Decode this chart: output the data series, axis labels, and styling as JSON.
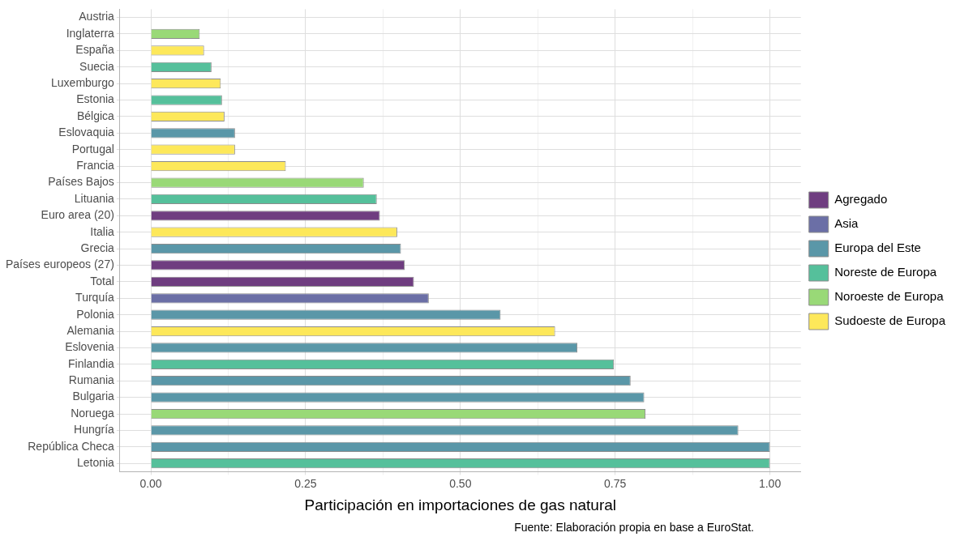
{
  "chart_data": {
    "type": "bar",
    "orientation": "horizontal",
    "stacked": true,
    "categories": [
      "Austria",
      "Inglaterra",
      "España",
      "Suecia",
      "Luxemburgo",
      "Estonia",
      "Bélgica",
      "Eslovaquia",
      "Portugal",
      "Francia",
      "Países Bajos",
      "Lituania",
      "Euro area (20)",
      "Italia",
      "Grecia",
      "Países europeos (27)",
      "Total",
      "Turquía",
      "Polonia",
      "Alemania",
      "Eslovenia",
      "Finlandia",
      "Rumania",
      "Bulgaria",
      "Noruega",
      "Hungría",
      "República Checa",
      "Letonia"
    ],
    "series": [
      {
        "name": "Agregado",
        "color": "#6f3d80",
        "values": [
          null,
          null,
          null,
          null,
          null,
          null,
          null,
          null,
          null,
          null,
          null,
          null,
          0.37,
          null,
          null,
          0.41,
          0.425,
          null,
          null,
          null,
          null,
          null,
          null,
          null,
          null,
          null,
          null,
          null
        ]
      },
      {
        "name": "Asia",
        "color": "#6b6fa6",
        "values": [
          null,
          null,
          null,
          null,
          null,
          null,
          null,
          null,
          null,
          null,
          null,
          null,
          null,
          null,
          null,
          null,
          null,
          0.449,
          null,
          null,
          null,
          null,
          null,
          null,
          null,
          null,
          null,
          null
        ]
      },
      {
        "name": "Europa del Este",
        "color": "#5a97a8",
        "values": [
          null,
          null,
          null,
          null,
          null,
          null,
          null,
          0.136,
          null,
          null,
          null,
          null,
          null,
          null,
          0.404,
          null,
          null,
          null,
          0.565,
          null,
          0.689,
          null,
          0.775,
          0.797,
          null,
          0.949,
          1.0,
          null
        ]
      },
      {
        "name": "Noreste de Europa",
        "color": "#55c09b",
        "values": [
          null,
          null,
          null,
          0.098,
          null,
          0.115,
          null,
          null,
          null,
          null,
          null,
          0.365,
          null,
          null,
          null,
          null,
          null,
          null,
          null,
          null,
          null,
          0.748,
          null,
          null,
          null,
          null,
          null,
          1.0
        ]
      },
      {
        "name": "Noroeste de Europa",
        "color": "#99d977",
        "values": [
          null,
          0.079,
          null,
          null,
          null,
          null,
          null,
          null,
          null,
          null,
          0.344,
          null,
          null,
          null,
          null,
          null,
          null,
          null,
          null,
          null,
          null,
          null,
          null,
          null,
          0.799,
          null,
          null,
          null
        ]
      },
      {
        "name": "Sudoeste de Europa",
        "color": "#fde85a",
        "values": [
          null,
          null,
          0.086,
          null,
          0.113,
          null,
          0.119,
          null,
          0.136,
          0.218,
          null,
          null,
          null,
          0.398,
          null,
          null,
          null,
          null,
          null,
          0.653,
          null,
          null,
          null,
          null,
          null,
          null,
          null,
          null
        ]
      }
    ],
    "xlabel": "Participación en importaciones de gas natural",
    "xlim": [
      -0.05,
      1.05
    ],
    "xticks": [
      {
        "value": 0,
        "label": "0.00"
      },
      {
        "value": 0.125,
        "label": null
      },
      {
        "value": 0.25,
        "label": "0.25"
      },
      {
        "value": 0.375,
        "label": null
      },
      {
        "value": 0.5,
        "label": "0.50"
      },
      {
        "value": 0.625,
        "label": null
      },
      {
        "value": 0.75,
        "label": "0.75"
      },
      {
        "value": 0.875,
        "label": null
      },
      {
        "value": 1,
        "label": "1.00"
      }
    ],
    "grid": true,
    "legend": "right",
    "annotations": [
      "Fuente: Elaboración propia en base a EuroStat."
    ]
  }
}
